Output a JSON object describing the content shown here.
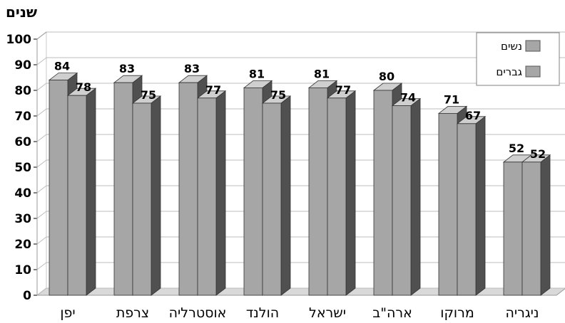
{
  "chart_data": {
    "type": "bar",
    "unit_label": "שנים",
    "categories": [
      "יפן",
      "צרפת",
      "אוסטרליה",
      "הולנד",
      "ישראל",
      "ארה\"ב",
      "מרוקו",
      "ניגריה"
    ],
    "series": [
      {
        "name": "נשים",
        "values": [
          84,
          83,
          83,
          81,
          81,
          80,
          71,
          52
        ]
      },
      {
        "name": "גברים",
        "values": [
          78,
          75,
          77,
          75,
          77,
          74,
          67,
          52
        ]
      }
    ],
    "ylim": [
      0,
      100
    ],
    "yticks": [
      0,
      10,
      20,
      30,
      40,
      50,
      60,
      70,
      80,
      90,
      100
    ],
    "grid": true,
    "legend_position": "top-right",
    "category_colors": [
      "#000000",
      "#000000",
      "#000000",
      "#000000",
      "#9a9a9a",
      "#000000",
      "#000000",
      "#000000"
    ]
  }
}
